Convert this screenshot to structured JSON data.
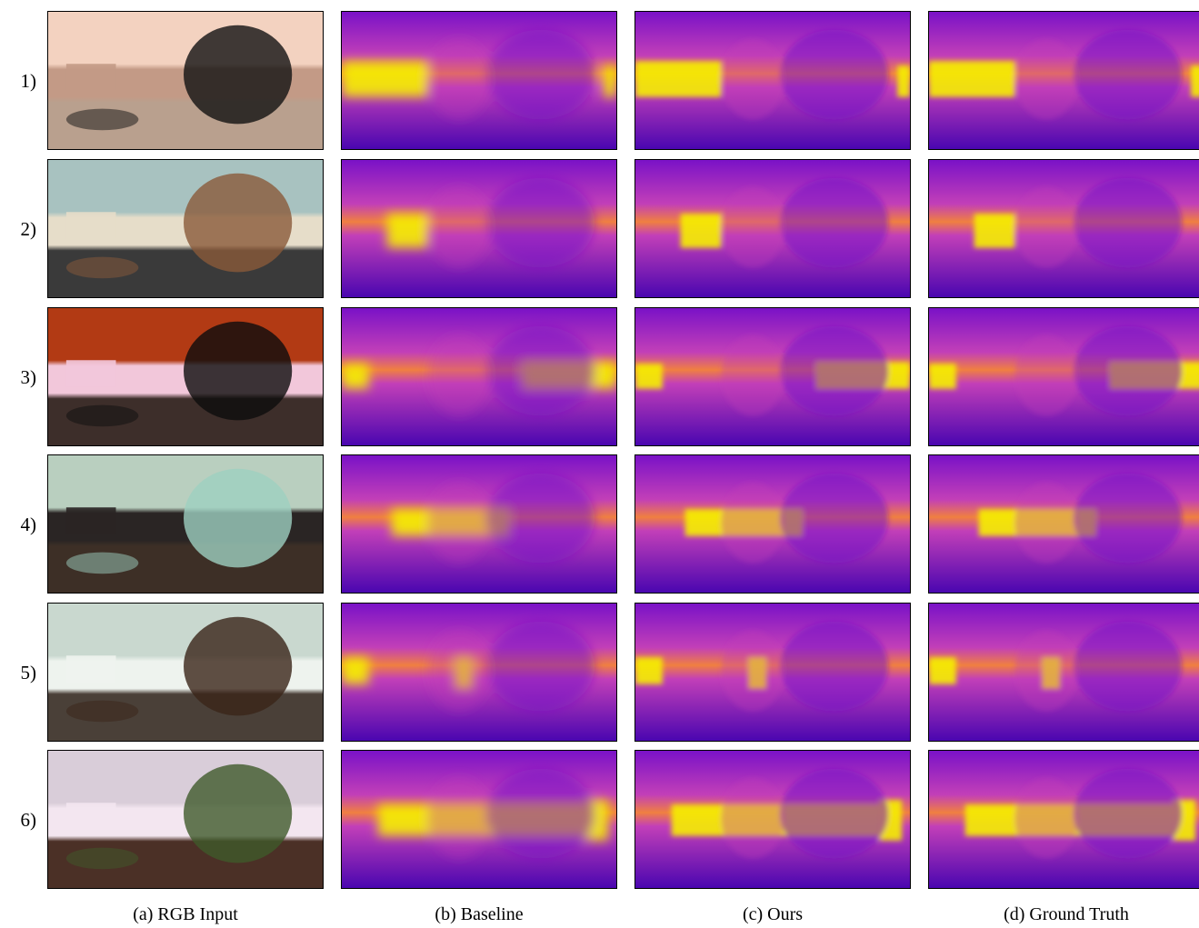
{
  "rows": [
    {
      "label": "1)"
    },
    {
      "label": "2)"
    },
    {
      "label": "3)"
    },
    {
      "label": "4)"
    },
    {
      "label": "5)"
    },
    {
      "label": "6)"
    }
  ],
  "columns": [
    {
      "caption": "(a) RGB Input",
      "kind": "rgb"
    },
    {
      "caption": "(b) Baseline",
      "kind": "depth"
    },
    {
      "caption": "(c) Ours",
      "kind": "depth"
    },
    {
      "caption": "(d) Ground Truth",
      "kind": "depth"
    }
  ],
  "colors": {
    "depth_far": "#f5f000",
    "depth_mid": "#f08040",
    "depth_near": "#c23fb8",
    "depth_close": "#7a12c7",
    "depth_closest": "#4a06b0"
  },
  "rgb_palettes": [
    {
      "ceiling": "#f3d2c0",
      "wall": "#c39a86",
      "floor": "#b9a08e",
      "accent": "#111111"
    },
    {
      "ceiling": "#a8c2c0",
      "wall": "#e6ddc9",
      "floor": "#3a3a3a",
      "accent": "#8a5a3a"
    },
    {
      "ceiling": "#b23a14",
      "wall": "#f2c7da",
      "floor": "#3d2e2a",
      "accent": "#0d0d0d"
    },
    {
      "ceiling": "#b9cfbf",
      "wall": "#2a2524",
      "floor": "#3d2f26",
      "accent": "#9ed0c0"
    },
    {
      "ceiling": "#c9d8cf",
      "wall": "#eef3ee",
      "floor": "#4a4038",
      "accent": "#3a2418"
    },
    {
      "ceiling": "#d9cdd9",
      "wall": "#f3e6f0",
      "floor": "#4b3026",
      "accent": "#3f5a2a"
    }
  ]
}
